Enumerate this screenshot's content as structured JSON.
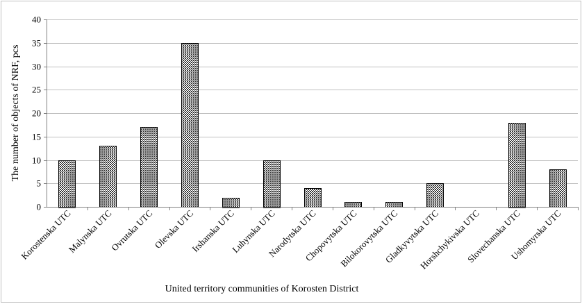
{
  "chart_data": {
    "type": "bar",
    "categories": [
      "Korostenska UTC",
      "Malynska UTC",
      "Ovrutska UTC",
      "Olevska UTC",
      "Irshanska UTC",
      "Luhynska UTC",
      "Narodytska UTC",
      "Chopovytska UTC",
      "Bilokorovytska UTC",
      "Gladkyvytska UTC",
      "Horshchykivska UTC",
      "Slovechanska UTC",
      "Ushomyrska UTC"
    ],
    "values": [
      10,
      13,
      17,
      35,
      2,
      10,
      4,
      1,
      1,
      5,
      0,
      18,
      8
    ],
    "xlabel": "United territory communities of Korosten District",
    "ylabel": "The number of  objects of NRF, pcs",
    "ylim": [
      0,
      40
    ],
    "yticks": [
      0,
      5,
      10,
      15,
      20,
      25,
      30,
      35,
      40
    ],
    "grid": true,
    "bar_fill": "#3a3a3a"
  }
}
